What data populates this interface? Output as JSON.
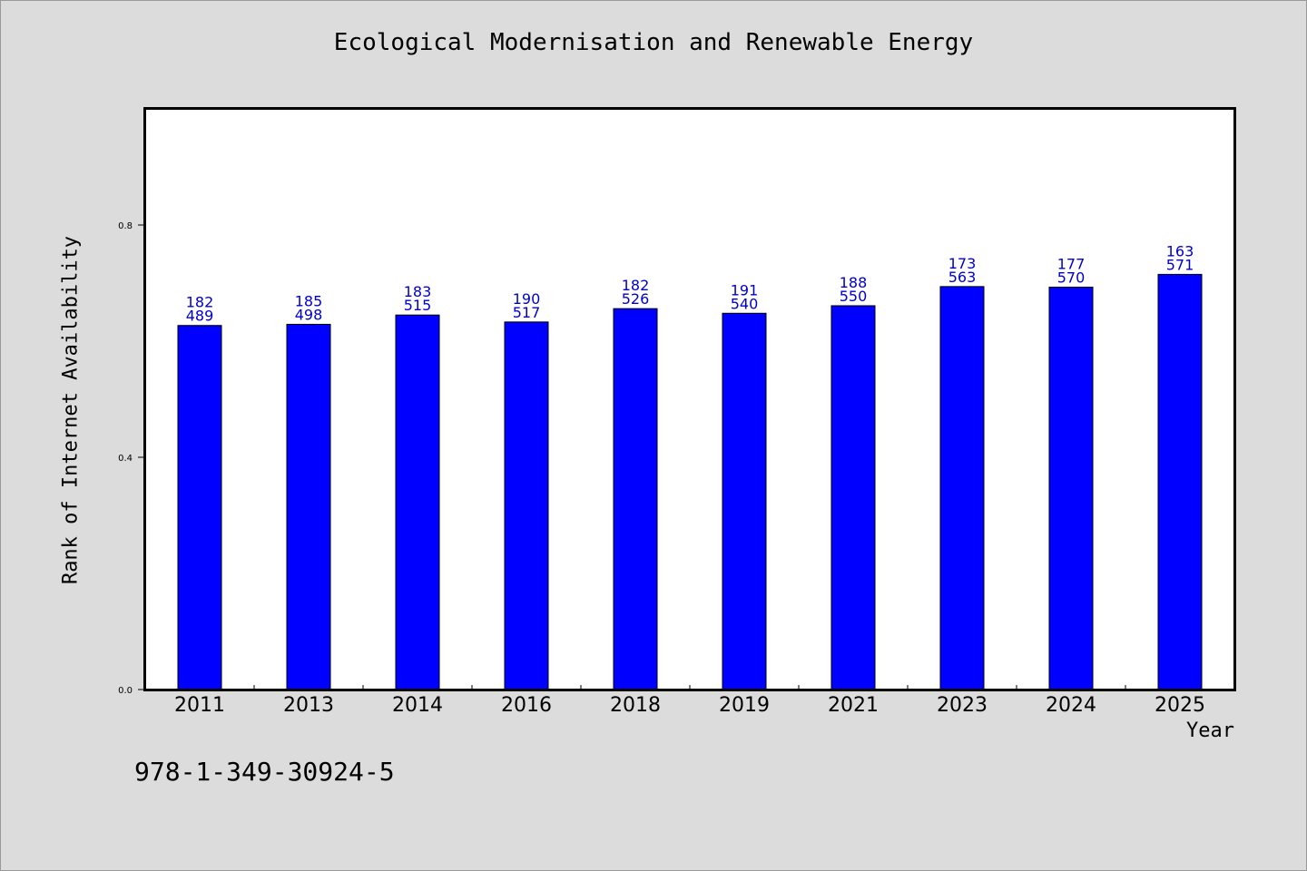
{
  "footnote": "978-1-349-30924-5",
  "chart_data": {
    "type": "bar",
    "title": "Ecological Modernisation and Renewable Energy",
    "xlabel": "Year",
    "ylabel": "Rank of Internet Availability",
    "categories": [
      "2011",
      "2013",
      "2014",
      "2016",
      "2018",
      "2019",
      "2021",
      "2023",
      "2024",
      "2025"
    ],
    "values": [
      0.627,
      0.629,
      0.645,
      0.633,
      0.656,
      0.648,
      0.661,
      0.694,
      0.693,
      0.715
    ],
    "label_top": [
      "182",
      "185",
      "183",
      "190",
      "182",
      "191",
      "188",
      "173",
      "177",
      "163"
    ],
    "label_bottom": [
      "489",
      "498",
      "515",
      "517",
      "526",
      "540",
      "550",
      "563",
      "570",
      "571"
    ],
    "ylim": [
      0,
      1.0
    ],
    "yticks": [
      0.0,
      0.4,
      0.8
    ],
    "ytick_labels": [
      "0.0",
      "0.4",
      "0.8"
    ],
    "grid": false,
    "legend": "none",
    "bar_color": "#0000ff",
    "label_color": "#0000cc"
  }
}
